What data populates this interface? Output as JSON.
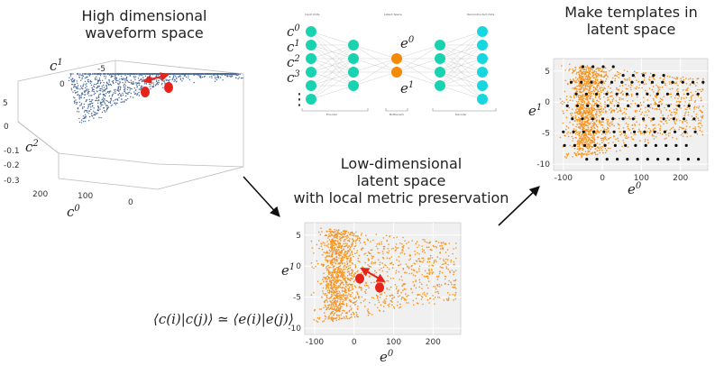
{
  "captions": {
    "high_dim_line1": "High dimensional",
    "high_dim_line2": "waveform space",
    "templates_line1": "Make templates in",
    "templates_line2": "latent space",
    "low_dim_line1": "Low-dimensional",
    "low_dim_line2": "latent space",
    "low_dim_line3": "with local metric preservation"
  },
  "equation": "⟨c(i)|c(j)⟩ ≃ ⟨e(i)|e(j)⟩",
  "network": {
    "input_labels": [
      "c0",
      "c1",
      "c2",
      "c3"
    ],
    "latent_labels": [
      "e0",
      "e1"
    ],
    "ellipsis": "⋮",
    "tiny_labels": [
      "Input Units",
      "Latent Space",
      "Reconstructed Units",
      "Encoder",
      "Bottleneck",
      "Decoder"
    ]
  },
  "plot3d": {
    "axis_labels": [
      "c1",
      "c2",
      "c0"
    ],
    "c1_ticks": [
      "-5",
      "0"
    ],
    "c2_ticks": [
      "5",
      "0",
      "-0.1",
      "-0.2",
      "-0.3"
    ],
    "c0_ticks": [
      "200",
      "100",
      "0"
    ]
  },
  "latent_plot": {
    "x_label": "e0",
    "y_label": "e1",
    "xlim": [
      -125,
      270
    ],
    "ylim": [
      -11,
      7
    ],
    "x_ticks": [
      -100,
      0,
      100,
      200
    ],
    "y_ticks": [
      5,
      0,
      -5,
      -10
    ]
  },
  "template_plot": {
    "x_label": "e0",
    "y_label": "e1",
    "xlim": [
      -125,
      270
    ],
    "ylim": [
      -11,
      7
    ],
    "x_ticks": [
      -100,
      0,
      100,
      200
    ],
    "y_ticks": [
      5,
      0,
      -5,
      -10
    ]
  },
  "colors": {
    "waveform_points": "#4a6a9a",
    "latent_points": "#f7931e",
    "template_points": "#111111",
    "highlight": "#e5231b",
    "node_teal": "#19d3b0",
    "node_cyan": "#16d6e0",
    "node_orange": "#f58a07"
  }
}
